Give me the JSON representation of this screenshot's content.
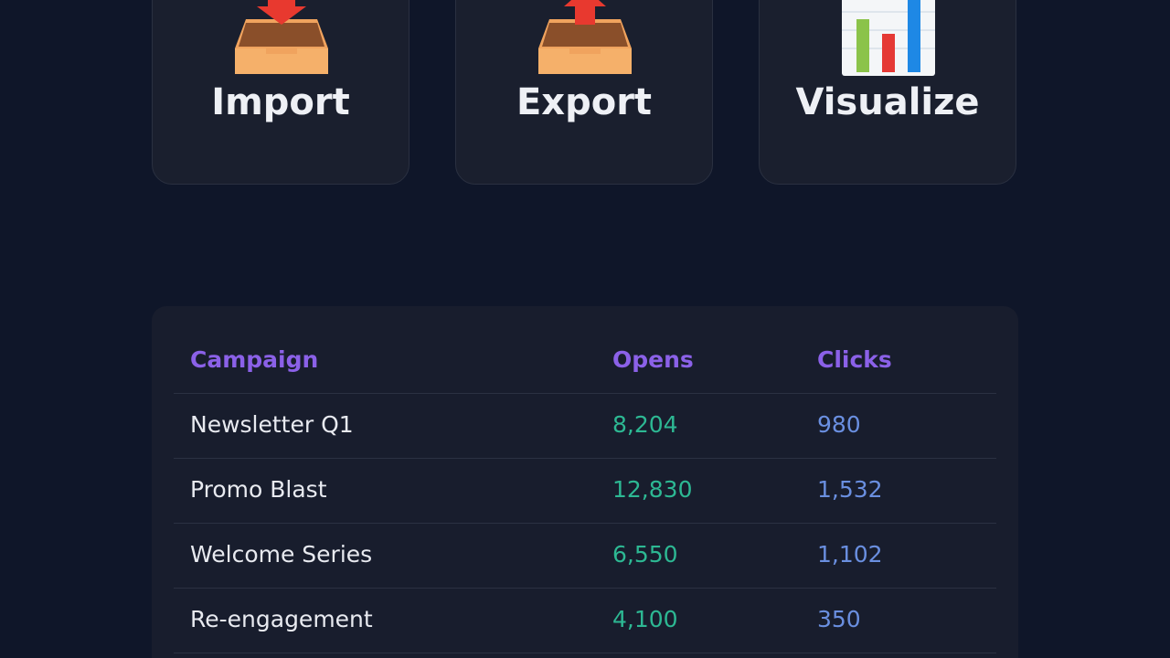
{
  "actions": [
    {
      "label": "Import"
    },
    {
      "label": "Export"
    },
    {
      "label": "Visualize"
    }
  ],
  "table": {
    "headers": [
      "Campaign",
      "Opens",
      "Clicks"
    ],
    "rows": [
      [
        "Newsletter Q1",
        "8,204",
        "980"
      ],
      [
        "Promo Blast",
        "12,830",
        "1,532"
      ],
      [
        "Welcome Series",
        "6,550",
        "1,102"
      ],
      [
        "Re-engagement",
        "4,100",
        "350"
      ]
    ]
  }
}
